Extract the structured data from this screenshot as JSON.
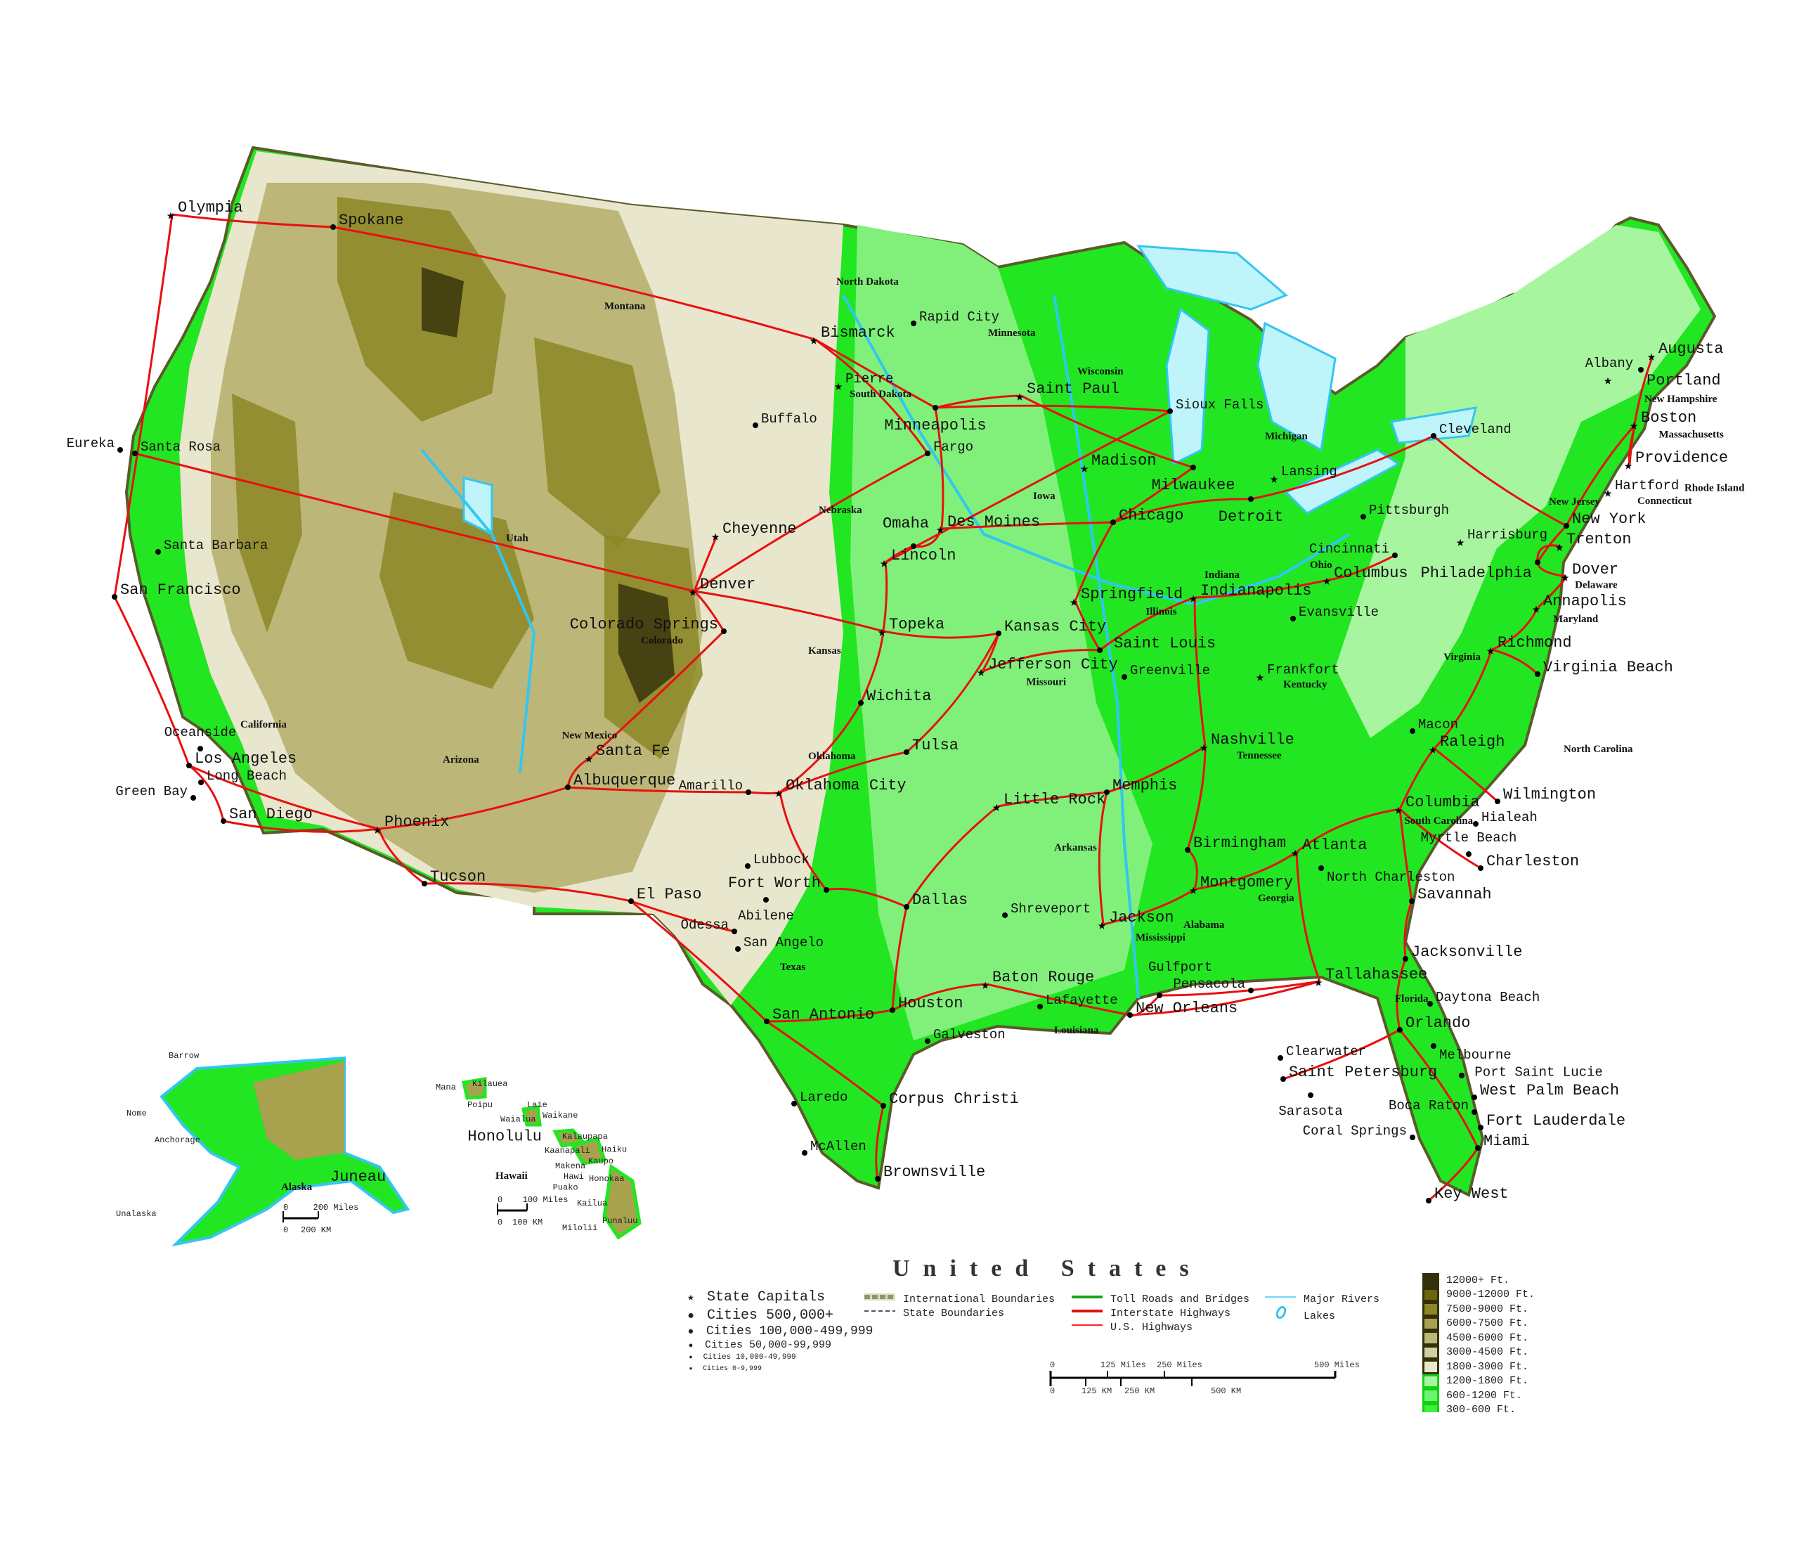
{
  "title": "United States",
  "legend": {
    "symbols": [
      {
        "icon": "star-icon",
        "label": "State Capitals"
      },
      {
        "icon": "dot-large-icon",
        "label": "Cities 500,000+"
      },
      {
        "icon": "dot-medium-icon",
        "label": "Cities 100,000-499,999"
      },
      {
        "icon": "dot-small-icon",
        "label": "Cities 50,000-99,999"
      },
      {
        "icon": "dot-tiny-icon",
        "label": "Cities 10,000-49,999"
      },
      {
        "icon": "dot-tiny-icon",
        "label": "Cities 0-9,999"
      }
    ],
    "lines": [
      {
        "label": "International Boundaries",
        "color": "#c8c68a"
      },
      {
        "label": "State Boundaries",
        "color": "#555555"
      },
      {
        "label": "Toll Roads and Bridges",
        "color": "#1aa31a"
      },
      {
        "label": "Interstate Highways",
        "color": "#e01010"
      },
      {
        "label": "U.S. Highways",
        "color": "#ff2020"
      },
      {
        "label": "Major Rivers",
        "color": "#6fd6f5"
      },
      {
        "label": "Lakes",
        "color": "#33c6f0"
      }
    ],
    "elevation": [
      {
        "label": "12000+ Ft.",
        "color": "#33300a"
      },
      {
        "label": "9000-12000 Ft.",
        "color": "#6b6510"
      },
      {
        "label": "7500-9000 Ft.",
        "color": "#8c8724"
      },
      {
        "label": "6000-7500 Ft.",
        "color": "#a8a24e"
      },
      {
        "label": "4500-6000 Ft.",
        "color": "#bcb678"
      },
      {
        "label": "3000-4500 Ft.",
        "color": "#d3cfa0"
      },
      {
        "label": "1800-3000 Ft.",
        "color": "#e8e6cc"
      },
      {
        "label": "1200-1800 Ft.",
        "color": "#a8f5a0"
      },
      {
        "label": "600-1200 Ft.",
        "color": "#6ef570"
      },
      {
        "label": "300-600 Ft.",
        "color": "#3cf03c"
      }
    ]
  },
  "scale": {
    "miles": [
      "0",
      "125 Miles",
      "250 Miles",
      "500 Miles"
    ],
    "km": [
      "0",
      "125 KM",
      "250 KM",
      "500 KM"
    ]
  },
  "insets": {
    "alaska": {
      "name": "Alaska",
      "cities": [
        "Barrow",
        "Nome",
        "Anchorage",
        "Juneau",
        "Unalaska"
      ],
      "scale_miles": [
        "0",
        "200 Miles"
      ],
      "scale_km": [
        "0",
        "200 KM"
      ]
    },
    "hawaii": {
      "name": "Hawaii",
      "cities": [
        "Kilauea",
        "Mana",
        "Poipu",
        "Laie",
        "Waialua",
        "Waikane",
        "Honolulu",
        "Kalaupapa",
        "Kaanapali",
        "Haiku",
        "Makena",
        "Kaupo",
        "Hawi",
        "Honokaa",
        "Puako",
        "Kailua",
        "Milolii",
        "Punaluu"
      ],
      "scale_miles": [
        "0",
        "100 Miles"
      ],
      "scale_km": [
        "0",
        "100 KM"
      ]
    }
  },
  "map": {
    "colors": {
      "lowland": "#22e622",
      "ocean": "#ffffff",
      "lake": "#bff4fb",
      "river": "#33c6f0",
      "road": "#e81010"
    },
    "states": [
      "North Dakota",
      "South Dakota",
      "Nebraska",
      "Kansas",
      "Oklahoma",
      "Texas",
      "Minnesota",
      "Iowa",
      "Wisconsin",
      "Illinois",
      "Michigan",
      "Indiana",
      "Ohio",
      "Kentucky",
      "Tennessee",
      "Arkansas",
      "Louisiana",
      "Alabama",
      "Georgia",
      "Florida",
      "South Carolina",
      "North Carolina",
      "Virginia",
      "Maryland",
      "Delaware",
      "New Jersey",
      "New Hampshire",
      "Massachusetts",
      "Rhode Island",
      "Connecticut",
      "Mississippi",
      "Missouri",
      "Utah",
      "Arizona",
      "New Mexico",
      "Colorado",
      "Montana",
      "California"
    ],
    "cities": [
      "Olympia",
      "Spokane",
      "Bismarck",
      "Minneapolis",
      "Saint Paul",
      "Milwaukee",
      "Chicago",
      "Detroit",
      "New York",
      "Boston",
      "Providence",
      "Augusta",
      "Portland",
      "Philadelphia",
      "Trenton",
      "Dover",
      "Annapolis",
      "Richmond",
      "Virginia Beach",
      "Raleigh",
      "Wilmington",
      "Columbia",
      "Charleston",
      "Savannah",
      "Atlanta",
      "Jacksonville",
      "Tallahassee",
      "Orlando",
      "Saint Petersburg",
      "Miami",
      "Fort Lauderdale",
      "West Palm Beach",
      "Key West",
      "New Orleans",
      "Baton Rouge",
      "Houston",
      "San Antonio",
      "Corpus Christi",
      "Brownsville",
      "Dallas",
      "Fort Worth",
      "Oklahoma City",
      "Tulsa",
      "Wichita",
      "Topeka",
      "Kansas City",
      "Jefferson City",
      "Saint Louis",
      "Springfield",
      "Indianapolis",
      "Columbus",
      "Nashville",
      "Memphis",
      "Little Rock",
      "Jackson",
      "Montgomery",
      "Birmingham",
      "Des Moines",
      "Lincoln",
      "Omaha",
      "Madison",
      "Denver",
      "Cheyenne",
      "Colorado Springs",
      "Santa Fe",
      "Albuquerque",
      "Phoenix",
      "Tucson",
      "El Paso",
      "Los Angeles",
      "San Diego",
      "San Francisco",
      "Long Beach",
      "Pierre",
      "Lansing",
      "Frankfort",
      "Harrisburg",
      "Hartford",
      "Albany",
      "McAllen",
      "Lubbock",
      "Amarillo",
      "Abilene",
      "Odessa",
      "San Angelo",
      "Laredo",
      "Galveston",
      "Lafayette",
      "Shreveport",
      "Pensacola",
      "Gulfport",
      "Clearwater",
      "Sarasota",
      "Daytona Beach",
      "Melbourne",
      "Port Saint Lucie",
      "Boca Raton",
      "Coral Springs",
      "Hialeah",
      "Myrtle Beach",
      "North Charleston",
      "Macon",
      "Greenville",
      "Evansville",
      "Cincinnati",
      "Pittsburgh",
      "Cleveland",
      "Buffalo",
      "Rapid City",
      "Fargo",
      "Sioux Falls",
      "Green Bay",
      "Oceanside",
      "Santa Barbara",
      "Santa Rosa",
      "Eureka"
    ]
  }
}
